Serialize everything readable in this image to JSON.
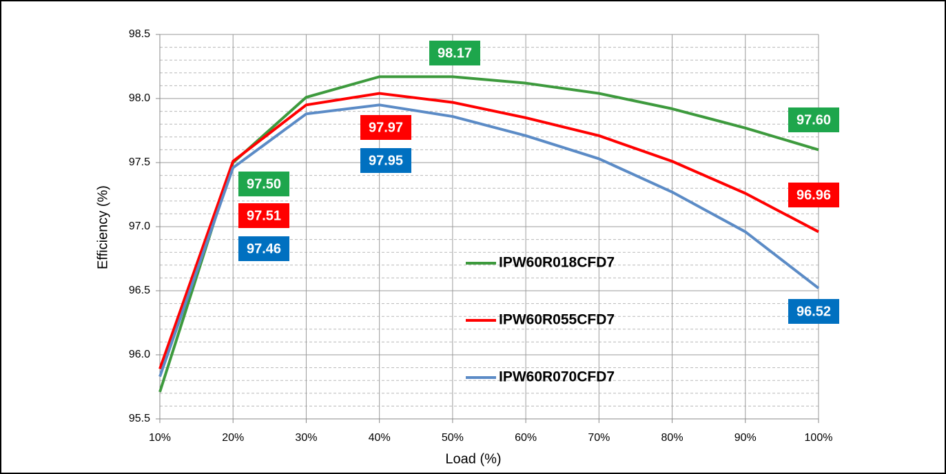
{
  "chart_data": {
    "type": "line",
    "xlabel": "Load (%)",
    "ylabel": "Efficiency (%)",
    "categories": [
      "10%",
      "20%",
      "30%",
      "40%",
      "50%",
      "60%",
      "70%",
      "80%",
      "90%",
      "100%"
    ],
    "ylim": [
      95.5,
      98.5
    ],
    "yticks": [
      95.5,
      {
        "value": 96,
        "label": "96.0"
      },
      96.5,
      {
        "value": 97,
        "label": "97.0"
      },
      97.5,
      {
        "value": 98,
        "label": "98.0"
      },
      98.5
    ],
    "yminor": [
      95.6,
      95.7,
      95.8,
      95.9,
      96.1,
      96.2,
      96.3,
      96.4,
      96.6,
      96.7,
      96.8,
      96.9,
      97.1,
      97.2,
      97.3,
      97.4,
      97.6,
      97.7,
      97.8,
      97.9,
      98.1,
      98.2,
      98.3,
      98.4
    ],
    "grid": true,
    "series": [
      {
        "name": "IPW60R018CFD7",
        "color": "#3d9a3d",
        "label_color": "#1ea64c",
        "values": [
          95.71,
          97.5,
          98.01,
          98.17,
          98.17,
          98.12,
          98.04,
          97.92,
          97.77,
          97.6
        ],
        "value_labels": [
          null,
          "97.50",
          null,
          null,
          "98.17",
          null,
          null,
          null,
          null,
          "97.60"
        ]
      },
      {
        "name": "IPW60R055CFD7",
        "color": "#ff0000",
        "label_color": "#ff0000",
        "values": [
          95.89,
          97.51,
          97.95,
          98.04,
          97.97,
          97.85,
          97.71,
          97.51,
          97.26,
          96.96
        ],
        "value_labels": [
          null,
          "97.51",
          null,
          null,
          "97.97",
          null,
          null,
          null,
          null,
          "96.96"
        ]
      },
      {
        "name": "IPW60R070CFD7",
        "color": "#5b8bc6",
        "label_color": "#0070c0",
        "values": [
          95.83,
          97.46,
          97.88,
          97.95,
          97.86,
          97.71,
          97.53,
          97.27,
          96.96,
          96.52
        ],
        "value_labels": [
          null,
          "97.46",
          null,
          "97.95",
          null,
          null,
          null,
          null,
          null,
          "96.52"
        ]
      }
    ]
  }
}
